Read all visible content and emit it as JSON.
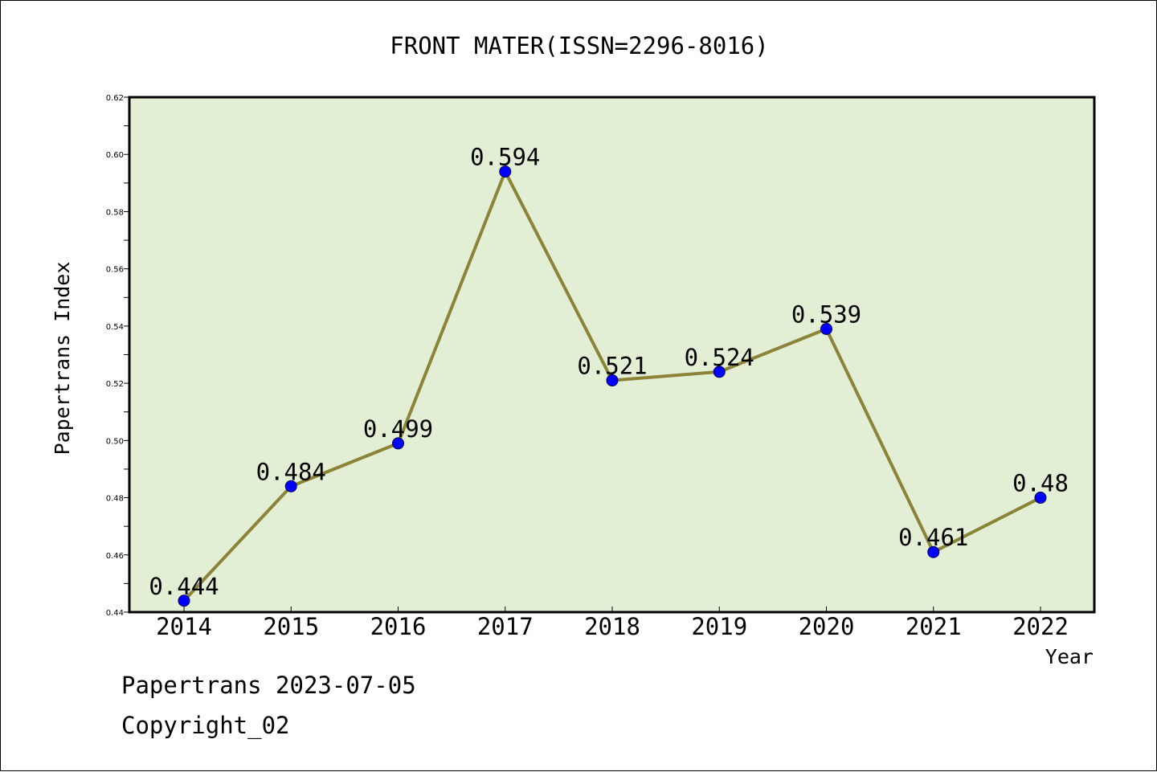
{
  "footer": {
    "line1": "Papertrans 2023-07-05",
    "line2": "Copyright_02"
  },
  "chart_data": {
    "type": "line",
    "title": "FRONT MATER(ISSN=2296-8016)",
    "xlabel": "Year",
    "ylabel": "Papertrans Index",
    "categories": [
      "2014",
      "2015",
      "2016",
      "2017",
      "2018",
      "2019",
      "2020",
      "2021",
      "2022"
    ],
    "values": [
      0.444,
      0.484,
      0.499,
      0.594,
      0.521,
      0.524,
      0.539,
      0.461,
      0.48
    ],
    "data_labels": [
      "0.444",
      "0.484",
      "0.499",
      "0.594",
      "0.521",
      "0.524",
      "0.539",
      "0.461",
      "0.48"
    ],
    "ylim": [
      0.44,
      0.62
    ],
    "yticks": [
      "0.44",
      "0.46",
      "0.48",
      "0.50",
      "0.52",
      "0.54",
      "0.56",
      "0.58",
      "0.60",
      "0.62"
    ],
    "grid": false,
    "colors": {
      "plot_background": "#e2efd4",
      "line": "#8c8238",
      "marker": "#0000ff",
      "axes": "#000000"
    }
  }
}
